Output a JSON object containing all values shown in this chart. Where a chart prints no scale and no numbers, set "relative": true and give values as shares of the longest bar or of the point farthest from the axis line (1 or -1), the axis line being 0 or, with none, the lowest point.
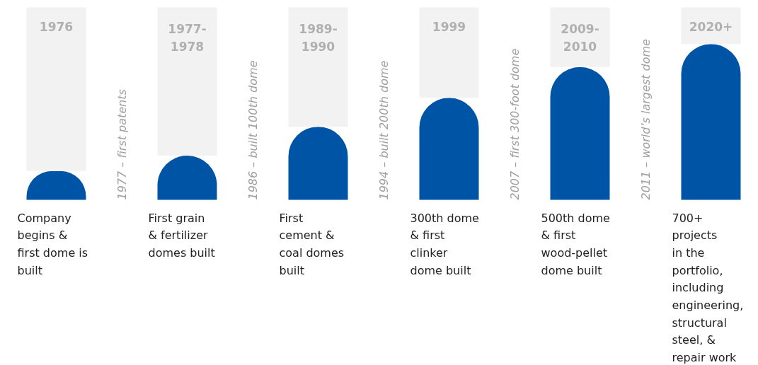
{
  "chart_data": {
    "type": "bar",
    "relative": true,
    "stacked": true,
    "grid": false,
    "categories": [
      "1976",
      "1977-\n1978",
      "1989-\n1990",
      "1999",
      "2009-\n2010",
      "2020+"
    ],
    "series": [
      {
        "color": "#0054a6",
        "values": [
          0.15,
          0.23,
          0.38,
          0.53,
          0.69,
          0.81
        ]
      },
      {
        "color": "#f2f2f2",
        "values": [
          0.85,
          0.77,
          0.62,
          0.47,
          0.31,
          0.19
        ]
      }
    ],
    "annotations": [
      "Company\nbegins &\nfirst dome is\nbuilt",
      "First grain\n& fertilizer\ndomes built",
      "First\ncement &\ncoal domes\nbuilt",
      "300th dome\n& first\nclinker\ndome built",
      "500th dome\n& first\nwood-pellet\ndome built",
      "700+\nprojects\nin the\nportfolio,\nincluding\nengineering,\nstructural\nsteel, &\nrepair work",
      "1977 – first patents",
      "1986 – built 100th dome",
      "1994 – built 200th dome",
      "2007 – first 300-foot dome",
      "2011 – world’s largest dome"
    ]
  }
}
